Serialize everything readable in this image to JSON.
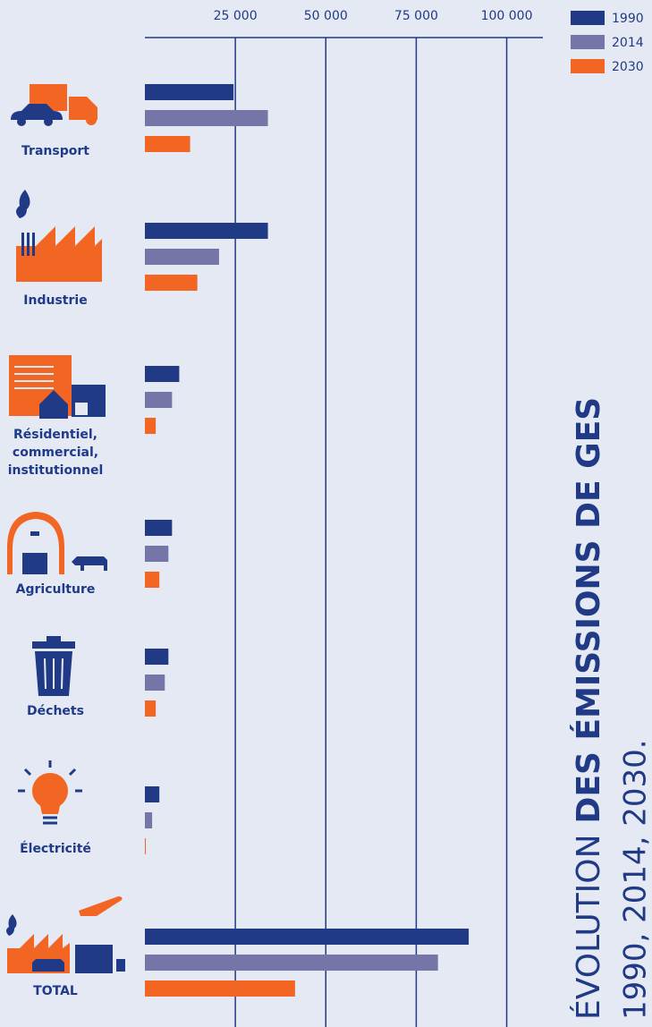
{
  "chart_data": {
    "type": "bar",
    "orientation": "horizontal",
    "title": [
      "ÉVOLUTION",
      "DES ÉMISSIONS DE GES"
    ],
    "subtitle": "1990, 2014, 2030.",
    "categories": [
      "Transport",
      "Industrie",
      "Résidentiel, commercial, institutionnel",
      "Agriculture",
      "Déchets",
      "Électricité",
      "TOTAL"
    ],
    "series": [
      {
        "name": "1990",
        "color": "#213a85",
        "values": [
          24500,
          34000,
          9500,
          7500,
          6500,
          4000,
          89500
        ]
      },
      {
        "name": "2014",
        "color": "#7575a8",
        "values": [
          34000,
          20500,
          7500,
          6500,
          5500,
          2000,
          81000
        ]
      },
      {
        "name": "2030",
        "color": "#f26522",
        "values": [
          12500,
          14500,
          3000,
          4000,
          3000,
          250,
          41500
        ]
      }
    ],
    "xlim": [
      0,
      110000
    ],
    "xticks": [
      {
        "value": 25000,
        "label": "25 000"
      },
      {
        "value": 50000,
        "label": "50 000"
      },
      {
        "value": 75000,
        "label": "75 000"
      },
      {
        "value": 100000,
        "label": "100 000"
      }
    ],
    "grid": true,
    "legend": "top-right"
  }
}
